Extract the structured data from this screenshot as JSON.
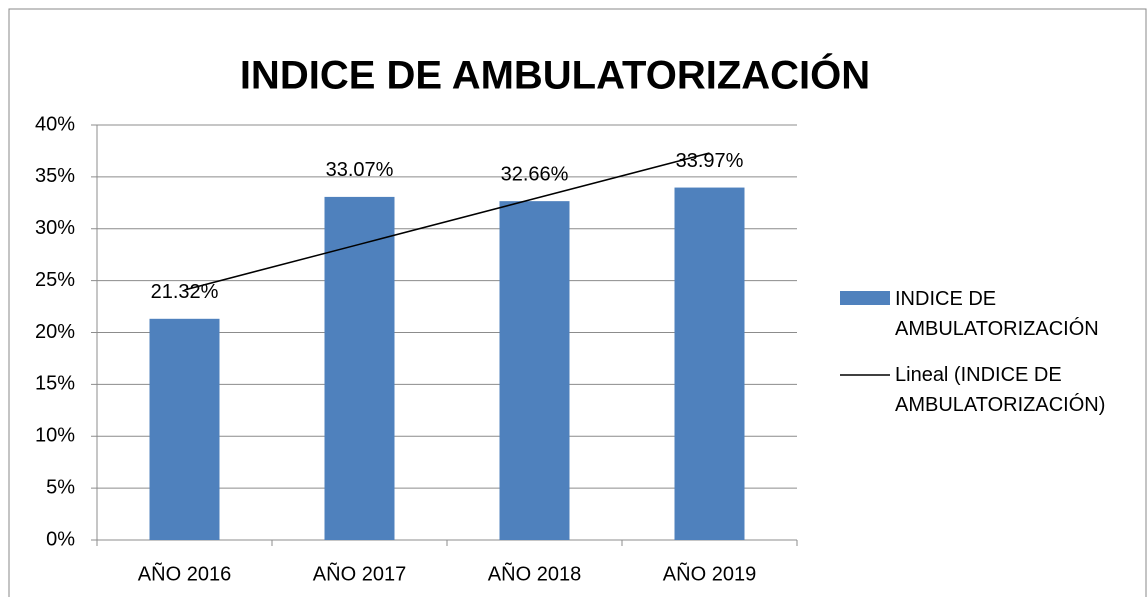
{
  "chart_data": {
    "type": "bar",
    "title": "INDICE DE AMBULATORIZACIÓN",
    "categories": [
      "AÑO 2016",
      "AÑO 2017",
      "AÑO 2018",
      "AÑO 2019"
    ],
    "series": [
      {
        "name": "INDICE DE AMBULATORIZACIÓN",
        "color": "#4f81bd",
        "values": [
          21.32,
          33.07,
          32.66,
          33.97
        ],
        "value_labels": [
          "21.32%",
          "33.07%",
          "32.66%",
          "33.97%"
        ]
      },
      {
        "name": "Lineal (INDICE DE AMBULATORIZACIÓN)",
        "type": "line",
        "color": "#000000",
        "values": [
          24.1,
          28.5,
          32.9,
          37.3
        ]
      }
    ],
    "ylim": [
      0,
      40
    ],
    "yticks": [
      {
        "value": 0,
        "label": "0%"
      },
      {
        "value": 5,
        "label": "5%"
      },
      {
        "value": 10,
        "label": "10%"
      },
      {
        "value": 15,
        "label": "15%"
      },
      {
        "value": 20,
        "label": "20%"
      },
      {
        "value": 25,
        "label": "25%"
      },
      {
        "value": 30,
        "label": "30%"
      },
      {
        "value": 35,
        "label": "35%"
      },
      {
        "value": 40,
        "label": "40%"
      }
    ],
    "grid": true,
    "legend": "right"
  }
}
